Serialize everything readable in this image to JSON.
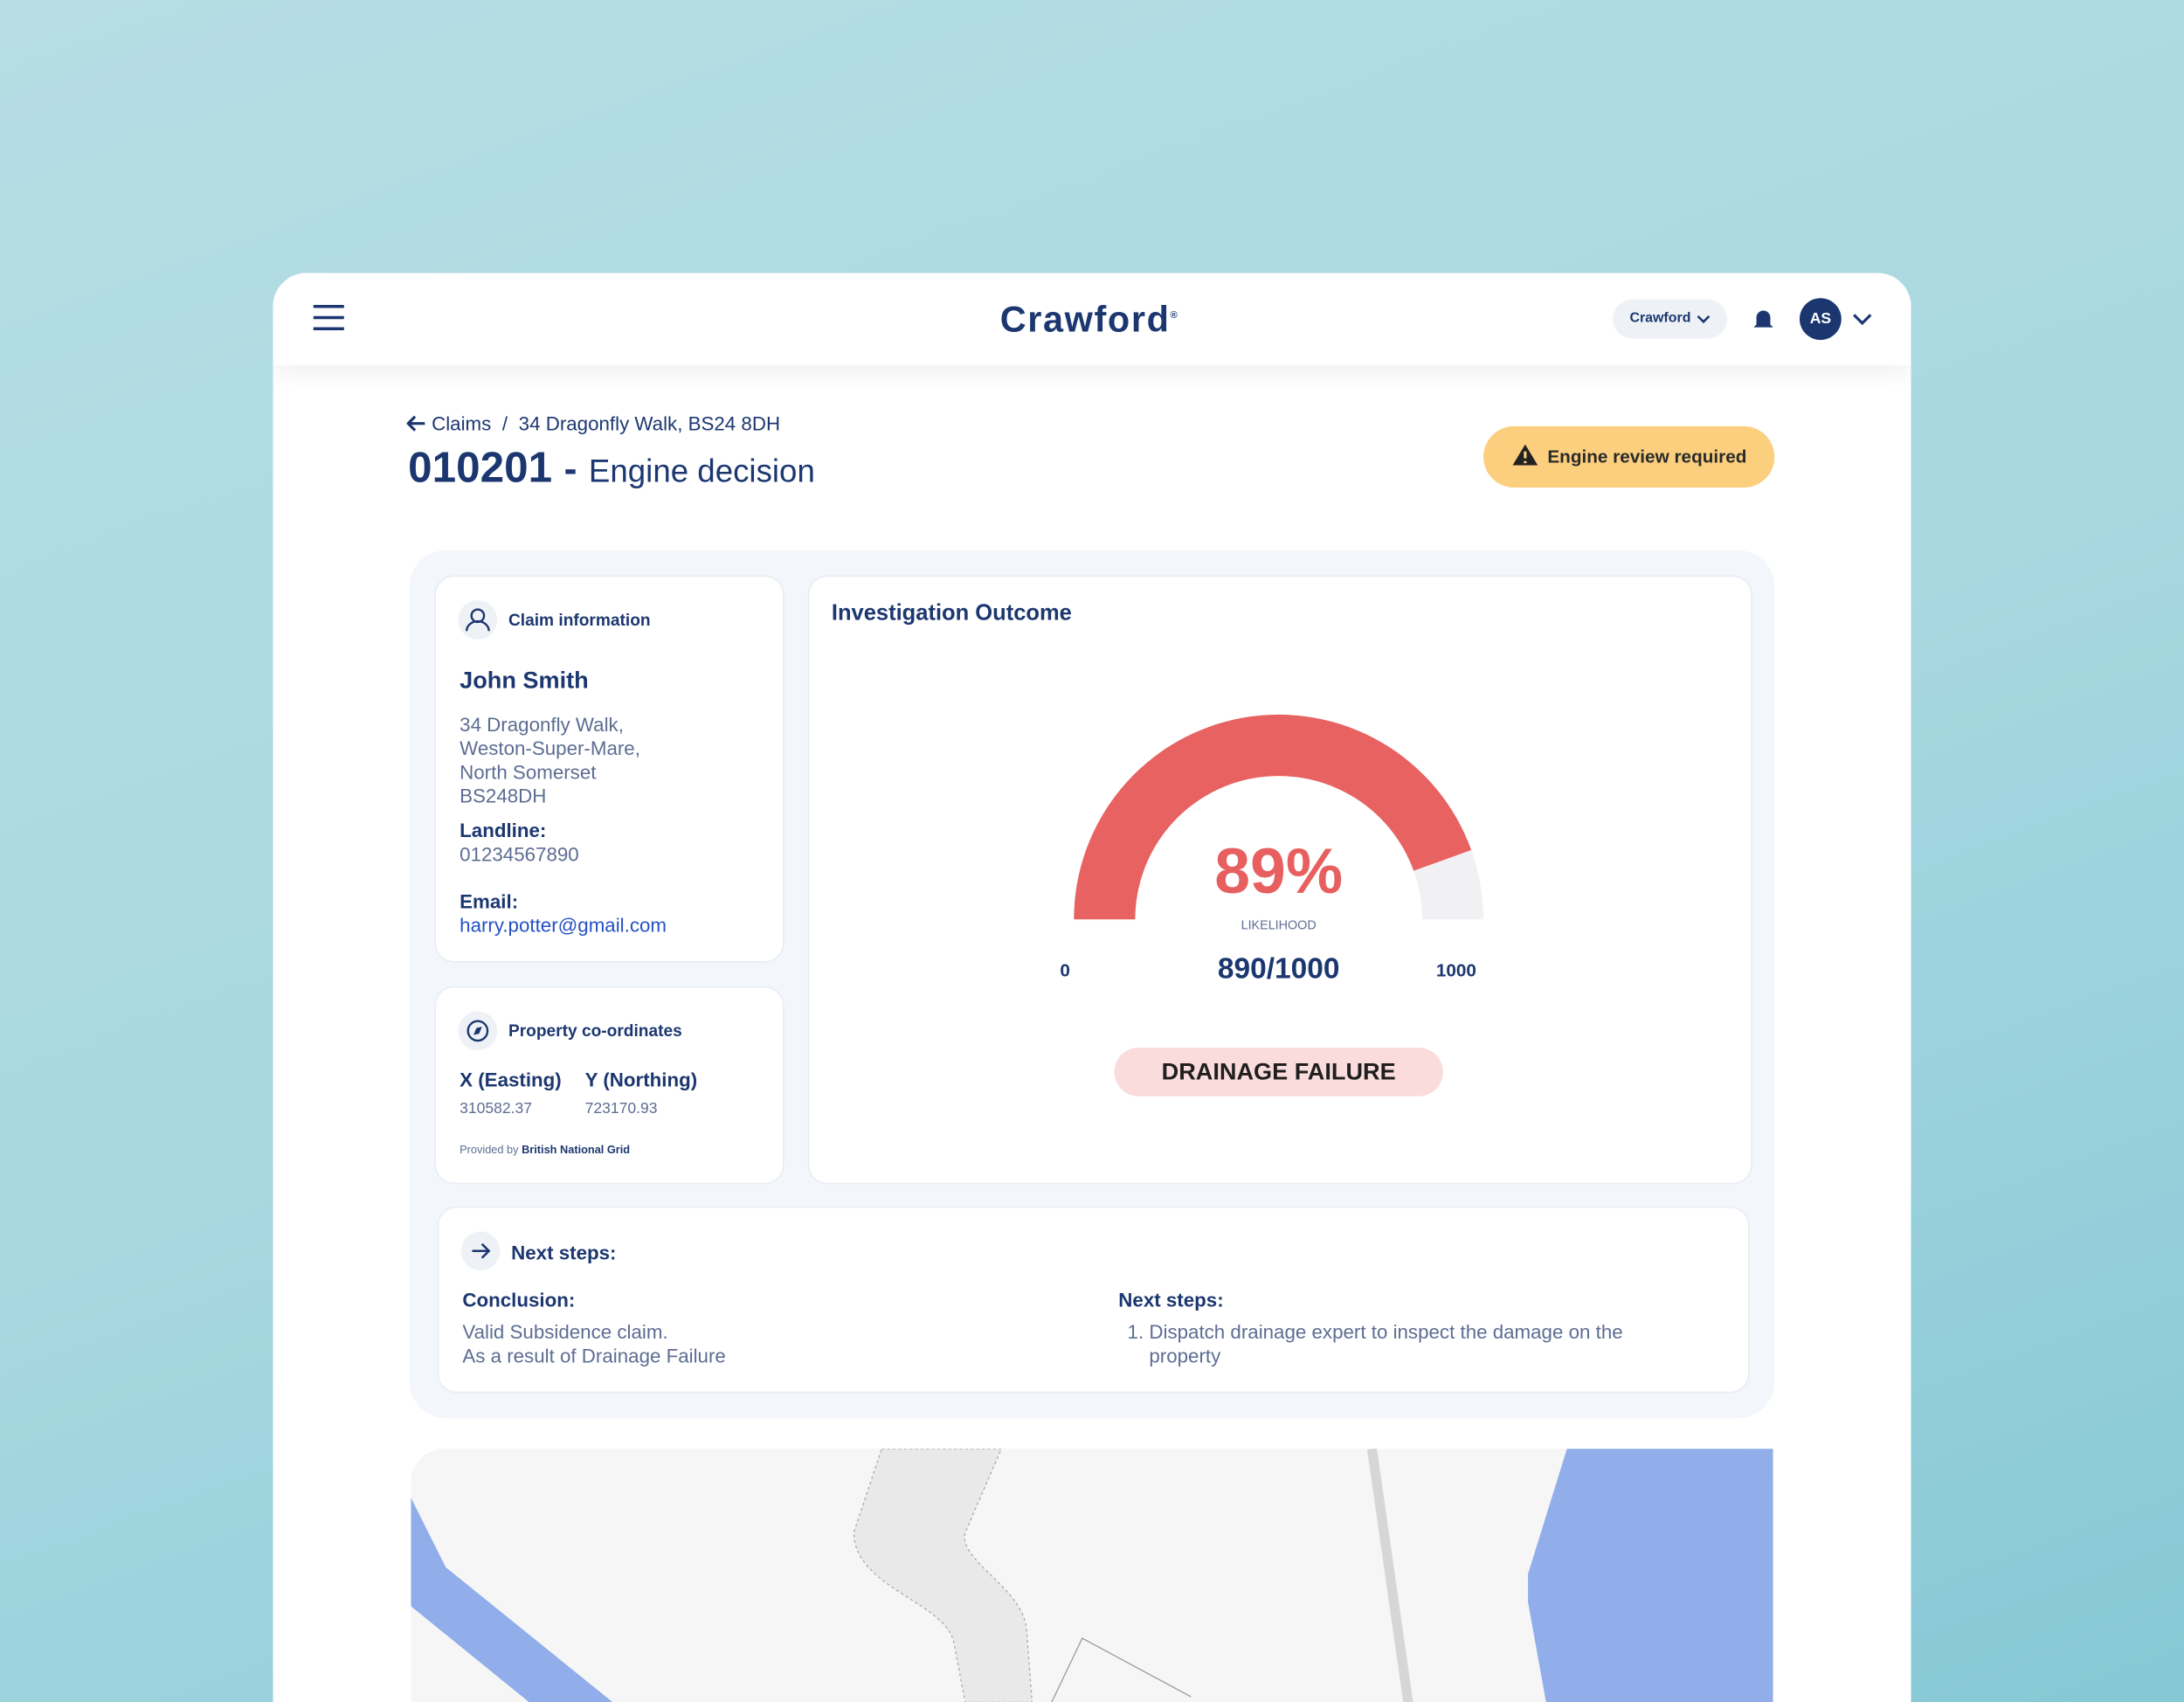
{
  "header": {
    "brand": "Crawford",
    "trademark": "®",
    "org_selector": "Crawford",
    "avatar": "AS"
  },
  "breadcrumb": {
    "parent": "Claims",
    "separator": "/",
    "current": "34 Dragonfly Walk, BS24 8DH"
  },
  "page": {
    "claim_id": "010201",
    "separator": "-",
    "title": "Engine decision",
    "status": "Engine review required"
  },
  "claim_info": {
    "heading": "Claim information",
    "name": "John Smith",
    "address": [
      "34 Dragonfly Walk,",
      "Weston-Super-Mare,",
      "North Somerset",
      "BS248DH"
    ],
    "landline_label": "Landline:",
    "landline": "01234567890",
    "email_label": "Email:",
    "email": "harry.potter@gmail.com"
  },
  "coordinates": {
    "heading": "Property co-ordinates",
    "x_label": "X (Easting)",
    "x_value": "310582.37",
    "y_label": "Y (Northing)",
    "y_value": "723170.93",
    "provider_prefix": "Provided by",
    "provider": "British National Grid"
  },
  "outcome": {
    "heading": "Investigation Outcome",
    "gauge": {
      "percent_label": "89%",
      "caption": "LIKELIHOOD",
      "score_label": "890/1000",
      "score": 890,
      "min": 0,
      "max": 1000
    },
    "result": "DRAINAGE FAILURE"
  },
  "next_steps": {
    "heading": "Next steps:",
    "conclusion_label": "Conclusion:",
    "conclusion": [
      "Valid Subsidence claim.",
      "As a result of Drainage Failure"
    ],
    "steps_label": "Next steps:",
    "steps": [
      "Dispatch drainage expert to inspect the damage on the property"
    ]
  }
}
